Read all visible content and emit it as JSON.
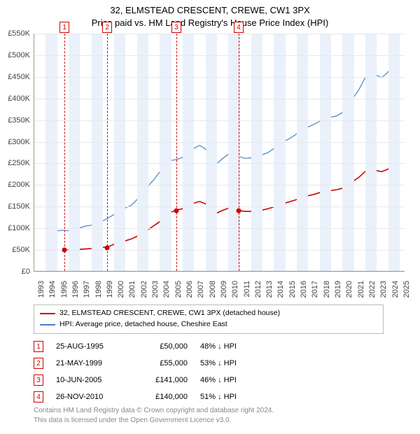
{
  "title": {
    "line1": "32, ELMSTEAD CRESCENT, CREWE, CW1 3PX",
    "line2": "Price paid vs. HM Land Registry's House Price Index (HPI)",
    "fontsize": 13
  },
  "chart": {
    "type": "line",
    "xlim": [
      1993,
      2025.5
    ],
    "ylim": [
      0,
      550000
    ],
    "ytick_step": 50000,
    "yticks": [
      "£0",
      "£50K",
      "£100K",
      "£150K",
      "£200K",
      "£250K",
      "£300K",
      "£350K",
      "£400K",
      "£450K",
      "£500K",
      "£550K"
    ],
    "xticks": [
      1993,
      1994,
      1995,
      1996,
      1997,
      1998,
      1999,
      2000,
      2001,
      2002,
      2003,
      2004,
      2005,
      2006,
      2007,
      2008,
      2009,
      2010,
      2011,
      2012,
      2013,
      2014,
      2015,
      2016,
      2017,
      2018,
      2019,
      2020,
      2021,
      2022,
      2023,
      2024,
      2025
    ],
    "bands_alternating": true,
    "band_color": "#eaf1fa",
    "grid_color": "#e8e8e8",
    "background_color": "#ffffff",
    "series": [
      {
        "name": "hpi",
        "label": "HPI: Average price, detached house, Cheshire East",
        "color": "#4a7ec9",
        "width": 1.2,
        "points": [
          [
            1995.0,
            93000
          ],
          [
            1995.5,
            94000
          ],
          [
            1996.0,
            93000
          ],
          [
            1996.5,
            97000
          ],
          [
            1997.0,
            100000
          ],
          [
            1997.5,
            104000
          ],
          [
            1998.0,
            106000
          ],
          [
            1998.5,
            112000
          ],
          [
            1999.0,
            116000
          ],
          [
            1999.5,
            123000
          ],
          [
            2000.0,
            131000
          ],
          [
            2000.5,
            140000
          ],
          [
            2001.0,
            146000
          ],
          [
            2001.5,
            152000
          ],
          [
            2002.0,
            165000
          ],
          [
            2002.5,
            181000
          ],
          [
            2003.0,
            197000
          ],
          [
            2003.5,
            212000
          ],
          [
            2004.0,
            229000
          ],
          [
            2004.5,
            247000
          ],
          [
            2005.0,
            256000
          ],
          [
            2005.5,
            258000
          ],
          [
            2006.0,
            263000
          ],
          [
            2006.5,
            273000
          ],
          [
            2007.0,
            284000
          ],
          [
            2007.5,
            291000
          ],
          [
            2008.0,
            283000
          ],
          [
            2008.5,
            260000
          ],
          [
            2009.0,
            248000
          ],
          [
            2009.5,
            260000
          ],
          [
            2010.0,
            270000
          ],
          [
            2010.5,
            272000
          ],
          [
            2011.0,
            265000
          ],
          [
            2011.5,
            261000
          ],
          [
            2012.0,
            262000
          ],
          [
            2012.5,
            266000
          ],
          [
            2013.0,
            269000
          ],
          [
            2013.5,
            274000
          ],
          [
            2014.0,
            283000
          ],
          [
            2014.5,
            294000
          ],
          [
            2015.0,
            301000
          ],
          [
            2015.5,
            308000
          ],
          [
            2016.0,
            317000
          ],
          [
            2016.5,
            326000
          ],
          [
            2017.0,
            333000
          ],
          [
            2017.5,
            339000
          ],
          [
            2018.0,
            346000
          ],
          [
            2018.5,
            352000
          ],
          [
            2019.0,
            356000
          ],
          [
            2019.5,
            359000
          ],
          [
            2020.0,
            366000
          ],
          [
            2020.5,
            381000
          ],
          [
            2021.0,
            401000
          ],
          [
            2021.5,
            420000
          ],
          [
            2022.0,
            445000
          ],
          [
            2022.5,
            462000
          ],
          [
            2023.0,
            454000
          ],
          [
            2023.5,
            448000
          ],
          [
            2024.0,
            459000
          ],
          [
            2024.5,
            477000
          ],
          [
            2025.0,
            492000
          ]
        ]
      },
      {
        "name": "property",
        "label": "32, ELMSTEAD CRESCENT, CREWE, CW1 3PX (detached house)",
        "color": "#cc0000",
        "width": 1.6,
        "points": [
          [
            1995.65,
            50000
          ],
          [
            1996.0,
            48000
          ],
          [
            1996.5,
            49000
          ],
          [
            1997.0,
            50000
          ],
          [
            1997.5,
            51000
          ],
          [
            1998.0,
            52000
          ],
          [
            1998.5,
            54000
          ],
          [
            1999.39,
            55000
          ],
          [
            2000.0,
            62000
          ],
          [
            2000.5,
            67000
          ],
          [
            2001.0,
            70000
          ],
          [
            2001.5,
            74000
          ],
          [
            2002.0,
            80000
          ],
          [
            2002.5,
            88000
          ],
          [
            2003.0,
            96000
          ],
          [
            2003.5,
            105000
          ],
          [
            2004.0,
            114000
          ],
          [
            2004.5,
            126000
          ],
          [
            2005.0,
            136000
          ],
          [
            2005.44,
            141000
          ],
          [
            2006.0,
            144000
          ],
          [
            2006.5,
            150000
          ],
          [
            2007.0,
            157000
          ],
          [
            2007.5,
            161000
          ],
          [
            2008.0,
            156000
          ],
          [
            2008.5,
            143000
          ],
          [
            2009.0,
            134000
          ],
          [
            2009.5,
            140000
          ],
          [
            2010.0,
            145000
          ],
          [
            2010.5,
            147000
          ],
          [
            2010.9,
            140000
          ],
          [
            2011.5,
            138000
          ],
          [
            2012.0,
            138000
          ],
          [
            2012.5,
            140000
          ],
          [
            2013.0,
            141000
          ],
          [
            2013.5,
            144000
          ],
          [
            2014.0,
            148000
          ],
          [
            2014.5,
            153000
          ],
          [
            2015.0,
            157000
          ],
          [
            2015.5,
            161000
          ],
          [
            2016.0,
            165000
          ],
          [
            2016.5,
            170000
          ],
          [
            2017.0,
            174000
          ],
          [
            2017.5,
            177000
          ],
          [
            2018.0,
            181000
          ],
          [
            2018.5,
            184000
          ],
          [
            2019.0,
            186000
          ],
          [
            2019.5,
            188000
          ],
          [
            2020.0,
            191000
          ],
          [
            2020.5,
            198000
          ],
          [
            2021.0,
            208000
          ],
          [
            2021.5,
            217000
          ],
          [
            2022.0,
            229000
          ],
          [
            2022.5,
            237000
          ],
          [
            2023.0,
            233000
          ],
          [
            2023.5,
            230000
          ],
          [
            2024.0,
            235000
          ],
          [
            2024.5,
            243000
          ],
          [
            2025.0,
            250000
          ]
        ]
      }
    ],
    "markers": [
      {
        "n": 1,
        "year": 1995.65,
        "value": 50000
      },
      {
        "n": 2,
        "year": 1999.39,
        "value": 55000
      },
      {
        "n": 3,
        "year": 2005.44,
        "value": 141000
      },
      {
        "n": 4,
        "year": 2010.9,
        "value": 140000
      }
    ],
    "marker_box_border": "#cc0000",
    "marker_dot_color": "#cc0000",
    "marker_line_color": "#cc0000",
    "marker_line_dash": true
  },
  "legend": {
    "items": [
      {
        "color": "#cc0000",
        "label": "32, ELMSTEAD CRESCENT, CREWE, CW1 3PX (detached house)"
      },
      {
        "color": "#4a7ec9",
        "label": "HPI: Average price, detached house, Cheshire East"
      }
    ],
    "fontsize": 10.5,
    "border_color": "#bbbbbb"
  },
  "marker_table": {
    "rows": [
      {
        "n": "1",
        "date": "25-AUG-1995",
        "price": "£50,000",
        "pct": "48% ↓ HPI"
      },
      {
        "n": "2",
        "date": "21-MAY-1999",
        "price": "£55,000",
        "pct": "53% ↓ HPI"
      },
      {
        "n": "3",
        "date": "10-JUN-2005",
        "price": "£141,000",
        "pct": "46% ↓ HPI"
      },
      {
        "n": "4",
        "date": "26-NOV-2010",
        "price": "£140,000",
        "pct": "51% ↓ HPI"
      }
    ],
    "fontsize": 11
  },
  "footer": {
    "line1": "Contains HM Land Registry data © Crown copyright and database right 2024.",
    "line2": "This data is licensed under the Open Government Licence v3.0.",
    "color": "#888888",
    "fontsize": 10
  }
}
